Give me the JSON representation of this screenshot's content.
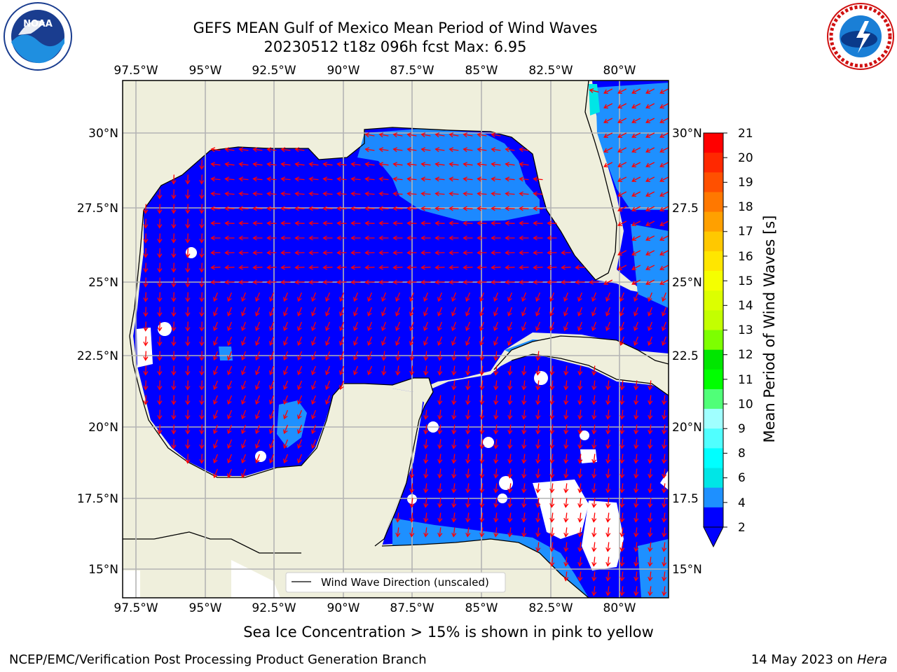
{
  "header": {
    "title_line1": "GEFS MEAN Gulf of Mexico Mean Period of Wind Waves",
    "title_line2": "20230512 t18z 096h fcst   Max: 6.95"
  },
  "logos": {
    "left": "noaa-logo",
    "right": "national-weather-service-logo"
  },
  "map": {
    "lon_ticks": [
      "97.5°W",
      "95°W",
      "92.5°W",
      "90°W",
      "87.5°W",
      "85°W",
      "82.5°W",
      "80°W"
    ],
    "lat_ticks": [
      "30°N",
      "27.5°N",
      "25°N",
      "22.5°N",
      "20°N",
      "17.5°N",
      "15°N"
    ],
    "right_lat_ticks": [
      "30°N",
      "27.5",
      "25°N",
      "22.5",
      "20°N",
      "17.5",
      "15°N"
    ],
    "extent": {
      "lon": [
        -98,
        -78.7
      ],
      "lat": [
        14,
        31.7
      ]
    },
    "gridlines": true,
    "legend": {
      "label": "Wind Wave Direction (unscaled)",
      "placement": "lower-center"
    },
    "colors": {
      "land": "#efefdc",
      "ocean_2_4": "#0000ff",
      "ocean_low": "#1e90ff",
      "vector": "#ff0000",
      "grid": "#b4b4b4"
    }
  },
  "colorbar": {
    "label": "Mean Period of Wind Waves [s]",
    "ticks": [
      "21",
      "20",
      "19",
      "18",
      "17",
      "16",
      "15",
      "14",
      "13",
      "12",
      "11",
      "10",
      "9",
      "8",
      "6",
      "4",
      "2"
    ],
    "colors": [
      "#ff0000",
      "#ff2800",
      "#ff5000",
      "#ff7800",
      "#ffa000",
      "#ffc800",
      "#ffe600",
      "#f5ff00",
      "#dcff00",
      "#c3ff00",
      "#7dff00",
      "#00e600",
      "#00ff00",
      "#50ff78",
      "#a0ffff",
      "#50ffff",
      "#00ffff",
      "#00e6e6",
      "#1e90ff",
      "#0000ff"
    ]
  },
  "caption": "Sea Ice Concentration > 15% is shown in pink to yellow",
  "footer": {
    "left": "NCEP/EMC/Verification Post Processing Product Generation Branch",
    "right_date": "14 May 2023 on ",
    "right_host": "Hera"
  }
}
